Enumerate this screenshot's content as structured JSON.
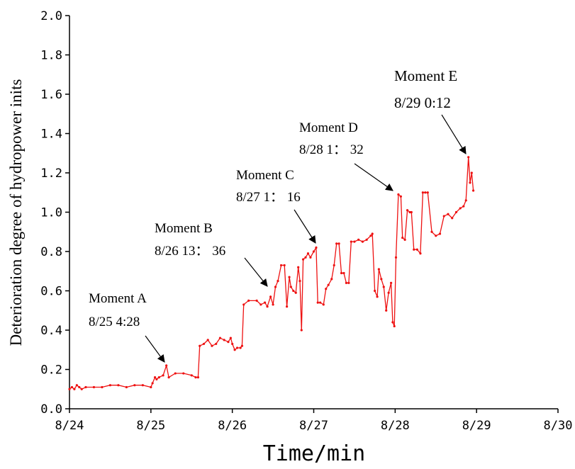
{
  "chart_data": {
    "type": "line",
    "x_label": "Time/min",
    "y_label": "Deterioration degree of hydropower inits",
    "xlim": [
      0,
      6
    ],
    "xticks": [
      {
        "value": 0,
        "label": "8/24"
      },
      {
        "value": 1,
        "label": "8/25"
      },
      {
        "value": 2,
        "label": "8/26"
      },
      {
        "value": 3,
        "label": "8/27"
      },
      {
        "value": 4,
        "label": "8/28"
      },
      {
        "value": 5,
        "label": "8/29"
      },
      {
        "value": 6,
        "label": "8/30"
      }
    ],
    "ylim": [
      0,
      2
    ],
    "yticks": [
      {
        "value": 0,
        "label": "0.0"
      },
      {
        "value": 0.2,
        "label": "0.2"
      },
      {
        "value": 0.4,
        "label": "0.4"
      },
      {
        "value": 0.6,
        "label": "0.6"
      },
      {
        "value": 0.8,
        "label": "0.8"
      },
      {
        "value": 1.0,
        "label": "1.0"
      },
      {
        "value": 1.2,
        "label": "1.2"
      },
      {
        "value": 1.4,
        "label": "1.4"
      },
      {
        "value": 1.6,
        "label": "1.6"
      },
      {
        "value": 1.8,
        "label": "1.8"
      },
      {
        "value": 2.0,
        "label": "2.0"
      }
    ],
    "annotations": [
      {
        "title": "Moment A",
        "text": "8/25 4:28"
      },
      {
        "title": "Moment B",
        "text": "8/26 13： 36"
      },
      {
        "title": "Moment C",
        "text": "8/27 1： 16"
      },
      {
        "title": "Moment D",
        "text": "8/28 1： 32"
      },
      {
        "title": "Moment E",
        "text": "8/29 0:12"
      }
    ],
    "series": [
      {
        "color": "#ee1111",
        "x": [
          0,
          0.03,
          0.06,
          0.09,
          0.12,
          0.15,
          0.2,
          0.3,
          0.4,
          0.5,
          0.6,
          0.7,
          0.8,
          0.9,
          1.0,
          1.02,
          1.05,
          1.07,
          1.1,
          1.15,
          1.19,
          1.22,
          1.3,
          1.4,
          1.5,
          1.55,
          1.58,
          1.6,
          1.65,
          1.7,
          1.75,
          1.8,
          1.85,
          1.9,
          1.95,
          1.98,
          2.0,
          2.03,
          2.06,
          2.1,
          2.12,
          2.14,
          2.2,
          2.3,
          2.35,
          2.4,
          2.43,
          2.47,
          2.5,
          2.53,
          2.56,
          2.6,
          2.64,
          2.67,
          2.7,
          2.72,
          2.75,
          2.78,
          2.81,
          2.83,
          2.85,
          2.87,
          2.9,
          2.93,
          2.96,
          3.0,
          3.03,
          3.05,
          3.08,
          3.12,
          3.15,
          3.18,
          3.22,
          3.25,
          3.28,
          3.31,
          3.34,
          3.37,
          3.4,
          3.43,
          3.46,
          3.5,
          3.55,
          3.6,
          3.65,
          3.7,
          3.72,
          3.75,
          3.78,
          3.8,
          3.83,
          3.86,
          3.89,
          3.92,
          3.95,
          3.97,
          3.99,
          4.01,
          4.04,
          4.07,
          4.09,
          4.12,
          4.15,
          4.18,
          4.2,
          4.23,
          4.27,
          4.31,
          4.34,
          4.37,
          4.4,
          4.45,
          4.5,
          4.55,
          4.6,
          4.65,
          4.7,
          4.75,
          4.8,
          4.84,
          4.87,
          4.9,
          4.92,
          4.94,
          4.96
        ],
        "values": [
          0.1,
          0.11,
          0.1,
          0.12,
          0.11,
          0.1,
          0.11,
          0.11,
          0.11,
          0.12,
          0.12,
          0.11,
          0.12,
          0.12,
          0.11,
          0.13,
          0.16,
          0.15,
          0.16,
          0.17,
          0.22,
          0.16,
          0.18,
          0.18,
          0.17,
          0.16,
          0.16,
          0.32,
          0.33,
          0.35,
          0.32,
          0.33,
          0.36,
          0.35,
          0.34,
          0.36,
          0.33,
          0.3,
          0.31,
          0.31,
          0.32,
          0.53,
          0.55,
          0.55,
          0.53,
          0.54,
          0.52,
          0.57,
          0.53,
          0.62,
          0.65,
          0.73,
          0.73,
          0.52,
          0.67,
          0.62,
          0.6,
          0.59,
          0.72,
          0.65,
          0.4,
          0.76,
          0.77,
          0.79,
          0.77,
          0.8,
          0.82,
          0.54,
          0.54,
          0.53,
          0.61,
          0.63,
          0.66,
          0.73,
          0.84,
          0.84,
          0.69,
          0.69,
          0.64,
          0.64,
          0.85,
          0.85,
          0.86,
          0.85,
          0.86,
          0.88,
          0.89,
          0.6,
          0.57,
          0.71,
          0.66,
          0.62,
          0.5,
          0.59,
          0.64,
          0.44,
          0.42,
          0.77,
          1.09,
          1.08,
          0.87,
          0.86,
          1.01,
          1.0,
          1.0,
          0.81,
          0.81,
          0.79,
          1.1,
          1.1,
          1.1,
          0.9,
          0.88,
          0.89,
          0.98,
          0.99,
          0.97,
          1.0,
          1.02,
          1.03,
          1.06,
          1.28,
          1.15,
          1.2,
          1.11
        ]
      }
    ]
  }
}
